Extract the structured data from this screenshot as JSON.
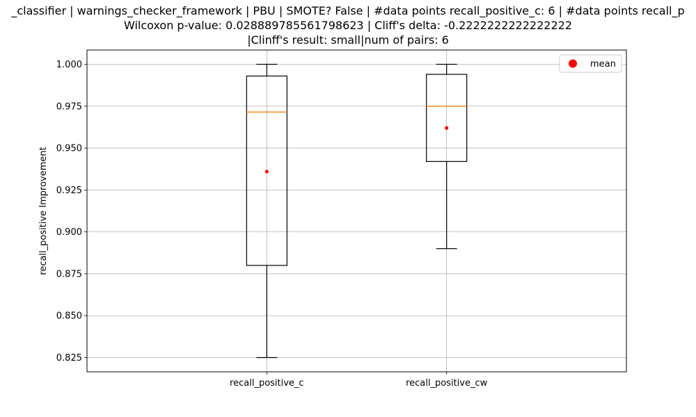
{
  "chart_data": {
    "type": "box",
    "title": [
      "_classifier | warnings_checker_framework | PBU | SMOTE? False | #data points recall_positive_c: 6 | #data points recall_p",
      "Wilcoxon p-value: 0.028889785561798623 | Cliff's delta: -0.2222222222222222",
      "|Clinff's result: small|num of pairs: 6"
    ],
    "xlabel": "",
    "ylabel": "recall_positive Improvement",
    "ylim": [
      0.8165,
      1.0085
    ],
    "yticks": [
      0.825,
      0.85,
      0.875,
      0.9,
      0.925,
      0.95,
      0.975,
      1.0
    ],
    "yticklabels": [
      "0.825",
      "0.850",
      "0.875",
      "0.900",
      "0.925",
      "0.950",
      "0.975",
      "1.000"
    ],
    "grid": true,
    "legend": {
      "position": "top-right",
      "entries": [
        {
          "label": "mean",
          "color": "#ff0000",
          "marker": "circle"
        }
      ]
    },
    "colors": {
      "box": "#000000",
      "median": "#ff7f0e",
      "mean": "#ff0000",
      "grid": "#b0b0b0"
    },
    "categories": [
      "recall_positive_c",
      "recall_positive_cw"
    ],
    "boxes": [
      {
        "label": "recall_positive_c",
        "whisker_low": 0.825,
        "q1": 0.88,
        "median": 0.9715,
        "q3": 0.993,
        "whisker_high": 1.0,
        "mean": 0.936
      },
      {
        "label": "recall_positive_cw",
        "whisker_low": 0.89,
        "q1": 0.942,
        "median": 0.975,
        "q3": 0.994,
        "whisker_high": 1.0,
        "mean": 0.962
      }
    ]
  }
}
